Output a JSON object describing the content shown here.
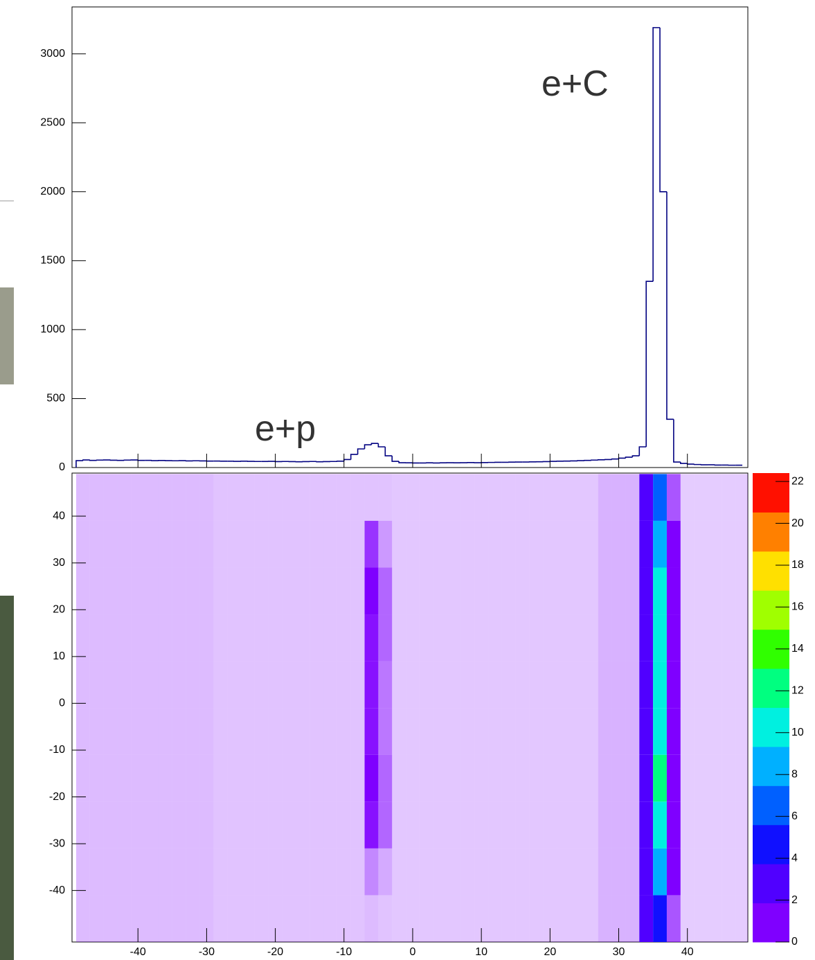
{
  "chart_data": [
    {
      "type": "histogram",
      "bins": [
        -49,
        -48,
        -47,
        -46,
        -45,
        -44,
        -43,
        -42,
        -41,
        -40,
        -39,
        -38,
        -37,
        -36,
        -35,
        -34,
        -33,
        -32,
        -31,
        -30,
        -29,
        -28,
        -27,
        -26,
        -25,
        -24,
        -23,
        -22,
        -21,
        -20,
        -19,
        -18,
        -17,
        -16,
        -15,
        -14,
        -13,
        -12,
        -11,
        -10,
        -9,
        -8,
        -7,
        -6,
        -5,
        -4,
        -3,
        -2,
        -1,
        0,
        1,
        2,
        3,
        4,
        5,
        6,
        7,
        8,
        9,
        10,
        11,
        12,
        13,
        14,
        15,
        16,
        17,
        18,
        19,
        20,
        21,
        22,
        23,
        24,
        25,
        26,
        27,
        28,
        29,
        30,
        31,
        32,
        33,
        34,
        35,
        36,
        37,
        38,
        39,
        40,
        41,
        42,
        43,
        44,
        45,
        46,
        47,
        48
      ],
      "values": [
        50,
        55,
        52,
        54,
        55,
        53,
        52,
        54,
        55,
        52,
        52,
        50,
        51,
        50,
        49,
        50,
        48,
        49,
        48,
        47,
        47,
        46,
        46,
        45,
        46,
        45,
        44,
        44,
        45,
        43,
        44,
        43,
        42,
        43,
        44,
        42,
        43,
        44,
        46,
        58,
        95,
        135,
        165,
        175,
        150,
        85,
        45,
        35,
        34,
        33,
        33,
        34,
        33,
        34,
        35,
        34,
        35,
        36,
        35,
        36,
        37,
        38,
        38,
        39,
        40,
        40,
        41,
        42,
        43,
        45,
        46,
        47,
        48,
        50,
        52,
        54,
        56,
        58,
        62,
        68,
        75,
        85,
        150,
        1350,
        3190,
        2000,
        350,
        40,
        30,
        25,
        22,
        20,
        20,
        18,
        18,
        17,
        17
      ],
      "color": "#000080",
      "xlim": [
        -49.6,
        48.8
      ],
      "ylim": [
        0,
        3340
      ],
      "yticks": [
        0,
        500,
        1000,
        1500,
        2000,
        2500,
        3000
      ],
      "annotations": [
        "e+p",
        "e+C"
      ]
    },
    {
      "type": "heatmap",
      "xbins": [
        -49,
        -47,
        -45,
        -43,
        -41,
        -39,
        -37,
        -35,
        -33,
        -31,
        -29,
        -27,
        -25,
        -23,
        -21,
        -19,
        -17,
        -15,
        -13,
        -11,
        -9,
        -7,
        -5,
        -3,
        -1,
        1,
        3,
        5,
        7,
        9,
        11,
        13,
        15,
        17,
        19,
        21,
        23,
        25,
        27,
        29,
        31,
        33,
        35,
        37,
        39,
        41,
        43,
        45,
        47,
        49
      ],
      "ybins": [
        -51,
        -41,
        -31,
        -21,
        -11,
        -1,
        9,
        19,
        29,
        39,
        49
      ],
      "z": [
        [
          0.4,
          0.4,
          0.4,
          0.4,
          0.4,
          0.4,
          0.4,
          0.4,
          0.4,
          0.4,
          0.35,
          0.35,
          0.35,
          0.35,
          0.35,
          0.35,
          0.35,
          0.35,
          0.35,
          0.35,
          0.35,
          0.4,
          0.35,
          0.33,
          0.33,
          0.33,
          0.33,
          0.33,
          0.33,
          0.33,
          0.33,
          0.33,
          0.33,
          0.33,
          0.33,
          0.33,
          0.33,
          0.33,
          0.45,
          0.45,
          0.45,
          2,
          5,
          1,
          0.3,
          0.3,
          0.3,
          0.3,
          0.3
        ],
        [
          0.4,
          0.4,
          0.4,
          0.4,
          0.4,
          0.4,
          0.4,
          0.4,
          0.4,
          0.4,
          0.35,
          0.35,
          0.35,
          0.35,
          0.35,
          0.35,
          0.35,
          0.35,
          0.35,
          0.35,
          0.35,
          0.7,
          0.5,
          0.33,
          0.33,
          0.33,
          0.33,
          0.33,
          0.33,
          0.33,
          0.33,
          0.33,
          0.33,
          0.33,
          0.33,
          0.33,
          0.33,
          0.33,
          0.45,
          0.45,
          0.45,
          3,
          9,
          1.5,
          0.3,
          0.3,
          0.3,
          0.3,
          0.3
        ],
        [
          0.4,
          0.4,
          0.4,
          0.4,
          0.4,
          0.4,
          0.4,
          0.4,
          0.4,
          0.4,
          0.35,
          0.35,
          0.35,
          0.35,
          0.35,
          0.35,
          0.35,
          0.35,
          0.35,
          0.35,
          0.35,
          1.4,
          0.9,
          0.33,
          0.33,
          0.33,
          0.33,
          0.33,
          0.33,
          0.33,
          0.33,
          0.33,
          0.33,
          0.33,
          0.33,
          0.33,
          0.33,
          0.33,
          0.45,
          0.45,
          0.45,
          3,
          11,
          1.5,
          0.3,
          0.3,
          0.3,
          0.3,
          0.3
        ],
        [
          0.4,
          0.4,
          0.4,
          0.4,
          0.4,
          0.4,
          0.4,
          0.4,
          0.4,
          0.4,
          0.35,
          0.35,
          0.35,
          0.35,
          0.35,
          0.35,
          0.35,
          0.35,
          0.35,
          0.35,
          0.35,
          1.5,
          0.9,
          0.33,
          0.33,
          0.33,
          0.33,
          0.33,
          0.33,
          0.33,
          0.33,
          0.33,
          0.33,
          0.33,
          0.33,
          0.33,
          0.33,
          0.33,
          0.45,
          0.45,
          0.45,
          3,
          12,
          1.5,
          0.3,
          0.3,
          0.3,
          0.3,
          0.3
        ],
        [
          0.4,
          0.4,
          0.4,
          0.4,
          0.4,
          0.4,
          0.4,
          0.4,
          0.4,
          0.4,
          0.35,
          0.35,
          0.35,
          0.35,
          0.35,
          0.35,
          0.35,
          0.35,
          0.35,
          0.35,
          0.35,
          1.4,
          0.8,
          0.33,
          0.33,
          0.33,
          0.33,
          0.33,
          0.33,
          0.33,
          0.33,
          0.33,
          0.33,
          0.33,
          0.33,
          0.33,
          0.33,
          0.33,
          0.45,
          0.45,
          0.45,
          3,
          11,
          1.5,
          0.3,
          0.3,
          0.3,
          0.3,
          0.3
        ],
        [
          0.4,
          0.4,
          0.4,
          0.4,
          0.4,
          0.4,
          0.4,
          0.4,
          0.4,
          0.4,
          0.35,
          0.35,
          0.35,
          0.35,
          0.35,
          0.35,
          0.35,
          0.35,
          0.35,
          0.35,
          0.35,
          1.4,
          0.8,
          0.33,
          0.33,
          0.33,
          0.33,
          0.33,
          0.33,
          0.33,
          0.33,
          0.33,
          0.33,
          0.33,
          0.33,
          0.33,
          0.33,
          0.33,
          0.45,
          0.45,
          0.45,
          3,
          11,
          1.5,
          0.3,
          0.3,
          0.3,
          0.3,
          0.3
        ],
        [
          0.4,
          0.4,
          0.4,
          0.4,
          0.4,
          0.4,
          0.4,
          0.4,
          0.4,
          0.4,
          0.35,
          0.35,
          0.35,
          0.35,
          0.35,
          0.35,
          0.35,
          0.35,
          0.35,
          0.35,
          0.35,
          1.4,
          0.9,
          0.33,
          0.33,
          0.33,
          0.33,
          0.33,
          0.33,
          0.33,
          0.33,
          0.33,
          0.33,
          0.33,
          0.33,
          0.33,
          0.33,
          0.33,
          0.45,
          0.45,
          0.45,
          3,
          10,
          1.5,
          0.3,
          0.3,
          0.3,
          0.3,
          0.3
        ],
        [
          0.4,
          0.4,
          0.4,
          0.4,
          0.4,
          0.4,
          0.4,
          0.4,
          0.4,
          0.4,
          0.35,
          0.35,
          0.35,
          0.35,
          0.35,
          0.35,
          0.35,
          0.35,
          0.35,
          0.35,
          0.35,
          1.5,
          0.9,
          0.33,
          0.33,
          0.33,
          0.33,
          0.33,
          0.33,
          0.33,
          0.33,
          0.33,
          0.33,
          0.33,
          0.33,
          0.33,
          0.33,
          0.33,
          0.45,
          0.45,
          0.45,
          3,
          10,
          1.5,
          0.3,
          0.3,
          0.3,
          0.3,
          0.3
        ],
        [
          0.4,
          0.4,
          0.4,
          0.4,
          0.4,
          0.4,
          0.4,
          0.4,
          0.4,
          0.4,
          0.35,
          0.35,
          0.35,
          0.35,
          0.35,
          0.35,
          0.35,
          0.35,
          0.35,
          0.35,
          0.35,
          1.2,
          0.6,
          0.33,
          0.33,
          0.33,
          0.33,
          0.33,
          0.33,
          0.33,
          0.33,
          0.33,
          0.33,
          0.33,
          0.33,
          0.33,
          0.33,
          0.33,
          0.45,
          0.45,
          0.45,
          3,
          9,
          1.5,
          0.3,
          0.3,
          0.3,
          0.3,
          0.3
        ],
        [
          0.4,
          0.4,
          0.4,
          0.4,
          0.4,
          0.4,
          0.4,
          0.4,
          0.4,
          0.4,
          0.35,
          0.35,
          0.35,
          0.35,
          0.35,
          0.35,
          0.35,
          0.35,
          0.35,
          0.35,
          0.35,
          0.35,
          0.35,
          0.33,
          0.33,
          0.33,
          0.33,
          0.33,
          0.33,
          0.33,
          0.33,
          0.33,
          0.33,
          0.33,
          0.33,
          0.33,
          0.33,
          0.33,
          0.45,
          0.45,
          0.45,
          2,
          6,
          1,
          0.3,
          0.3,
          0.3,
          0.3,
          0.3
        ]
      ],
      "xlim": [
        -49.6,
        48.8
      ],
      "ylim": [
        -51,
        49.2
      ],
      "xticks": [
        -40,
        -30,
        -20,
        -10,
        0,
        10,
        20,
        30,
        40
      ],
      "yticks": [
        -40,
        -30,
        -20,
        -10,
        0,
        10,
        20,
        30,
        40
      ],
      "zlim": [
        0,
        22.4
      ],
      "zticks": [
        0,
        2,
        4,
        6,
        8,
        10,
        12,
        14,
        16,
        18,
        20,
        22
      ],
      "palette": [
        "#7f00ff",
        "#5000ff",
        "#1010ff",
        "#0060ff",
        "#00b0ff",
        "#00f0e0",
        "#00ff80",
        "#30ff00",
        "#a0ff00",
        "#ffe000",
        "#ff8000",
        "#ff1000"
      ]
    }
  ]
}
